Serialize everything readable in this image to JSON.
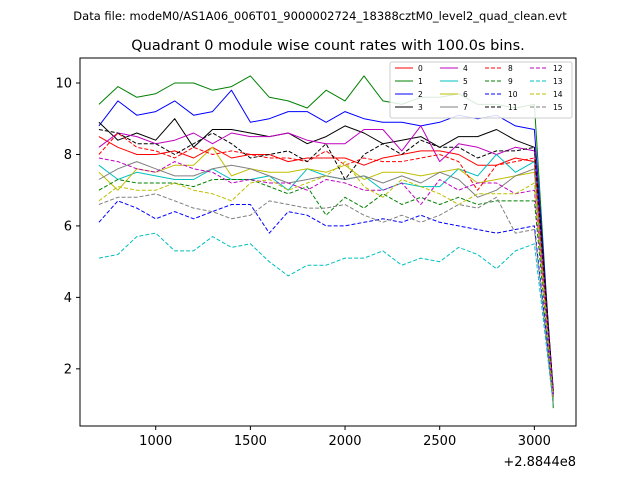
{
  "header": {
    "datafile": "Data file: modeM0/AS1A06_006T01_9000002724_18388cztM0_level2_quad_clean.evt"
  },
  "chart_data": {
    "type": "line",
    "title": "Quadrant 0 module wise count rates with 100.0s bins.",
    "xlabel": "",
    "ylabel": "",
    "x_offset_label": "+2.8844e8",
    "xlim": [
      600,
      3220
    ],
    "ylim": [
      0.4,
      10.7
    ],
    "xticks": [
      1000,
      1500,
      2000,
      2500,
      3000
    ],
    "yticks": [
      2,
      4,
      6,
      8,
      10
    ],
    "legend_position": "top-right",
    "x": [
      700,
      800,
      900,
      1000,
      1100,
      1200,
      1300,
      1400,
      1500,
      1600,
      1700,
      1800,
      1900,
      2000,
      2100,
      2200,
      2300,
      2400,
      2500,
      2600,
      2700,
      2800,
      2900,
      3000,
      3100
    ],
    "series": [
      {
        "name": "0",
        "color": "#ff0000",
        "dash": "solid",
        "values": [
          8.5,
          8.2,
          8.0,
          8.0,
          8.1,
          7.9,
          8.2,
          7.9,
          8.0,
          8.0,
          7.8,
          7.9,
          7.9,
          7.9,
          7.7,
          7.9,
          8.0,
          8.1,
          8.1,
          8.0,
          7.7,
          7.7,
          7.9,
          7.8,
          1.2
        ]
      },
      {
        "name": "1",
        "color": "#008000",
        "dash": "solid",
        "values": [
          9.4,
          9.9,
          9.6,
          9.7,
          10.0,
          10.0,
          9.8,
          9.9,
          10.2,
          9.6,
          9.5,
          9.3,
          9.8,
          9.5,
          10.2,
          9.5,
          9.4,
          9.6,
          9.6,
          9.7,
          9.4,
          9.4,
          9.3,
          9.4,
          0.9
        ]
      },
      {
        "name": "2",
        "color": "#0000ff",
        "dash": "solid",
        "values": [
          8.8,
          9.5,
          9.1,
          9.2,
          9.5,
          9.1,
          9.2,
          9.8,
          8.9,
          9.0,
          9.2,
          9.2,
          8.9,
          9.2,
          9.0,
          8.9,
          8.9,
          8.8,
          8.9,
          9.1,
          9.0,
          9.1,
          8.8,
          8.7,
          1.3
        ]
      },
      {
        "name": "3",
        "color": "#000000",
        "dash": "solid",
        "values": [
          8.9,
          8.4,
          8.6,
          8.4,
          9.0,
          8.2,
          8.7,
          8.7,
          8.6,
          8.5,
          8.6,
          8.3,
          8.5,
          8.8,
          8.6,
          8.3,
          8.4,
          8.5,
          8.2,
          8.5,
          8.5,
          8.7,
          8.4,
          8.2,
          1.4
        ]
      },
      {
        "name": "4",
        "color": "#c000c0",
        "dash": "solid",
        "values": [
          8.2,
          8.6,
          8.5,
          8.3,
          8.4,
          8.6,
          8.3,
          8.6,
          8.5,
          8.5,
          8.6,
          8.4,
          8.3,
          8.3,
          8.7,
          8.7,
          8.1,
          8.8,
          7.8,
          8.3,
          8.2,
          8.0,
          8.2,
          8.1,
          1.3
        ]
      },
      {
        "name": "5",
        "color": "#00bfbf",
        "dash": "solid",
        "values": [
          7.7,
          7.3,
          7.5,
          7.4,
          7.3,
          7.3,
          7.6,
          7.3,
          7.3,
          7.4,
          7.0,
          7.6,
          7.4,
          7.3,
          7.4,
          7.0,
          7.2,
          7.1,
          7.1,
          7.6,
          7.4,
          8.0,
          7.5,
          7.8,
          1.1
        ]
      },
      {
        "name": "6",
        "color": "#bfbf00",
        "dash": "solid",
        "values": [
          7.5,
          7.0,
          7.6,
          7.5,
          7.7,
          7.7,
          8.2,
          7.4,
          7.6,
          7.5,
          7.5,
          7.6,
          7.5,
          7.7,
          7.3,
          7.5,
          7.5,
          7.4,
          7.5,
          7.6,
          7.2,
          7.3,
          7.4,
          7.5,
          1.0
        ]
      },
      {
        "name": "7",
        "color": "#808080",
        "dash": "solid",
        "values": [
          7.3,
          7.6,
          7.8,
          7.6,
          7.4,
          7.4,
          7.6,
          7.7,
          7.6,
          7.4,
          7.2,
          7.3,
          7.4,
          7.3,
          7.4,
          7.2,
          7.4,
          7.2,
          7.5,
          7.3,
          6.8,
          7.0,
          7.4,
          7.6,
          1.2
        ]
      },
      {
        "name": "8",
        "color": "#ff0000",
        "dash": "dashed",
        "values": [
          8.0,
          8.6,
          8.2,
          8.1,
          7.9,
          8.2,
          8.0,
          8.1,
          8.0,
          7.9,
          7.9,
          7.8,
          8.1,
          7.7,
          7.9,
          7.8,
          7.8,
          7.9,
          8.0,
          7.8,
          7.0,
          7.7,
          7.8,
          7.9,
          1.2
        ]
      },
      {
        "name": "9",
        "color": "#008000",
        "dash": "dashed",
        "values": [
          7.0,
          7.3,
          7.2,
          7.2,
          7.2,
          7.1,
          7.3,
          7.3,
          7.3,
          7.1,
          6.9,
          7.1,
          6.3,
          6.8,
          6.5,
          6.9,
          6.6,
          6.8,
          6.6,
          6.8,
          6.6,
          6.7,
          6.7,
          6.7,
          1.1
        ]
      },
      {
        "name": "10",
        "color": "#0000ff",
        "dash": "dashed",
        "values": [
          6.1,
          6.7,
          6.5,
          6.2,
          6.4,
          6.2,
          6.4,
          6.6,
          6.6,
          5.8,
          6.4,
          6.3,
          6.0,
          6.0,
          6.1,
          6.2,
          6.1,
          6.3,
          6.1,
          6.0,
          5.9,
          5.8,
          5.9,
          6.0,
          1.2
        ]
      },
      {
        "name": "11",
        "color": "#000000",
        "dash": "dashed",
        "values": [
          8.7,
          8.6,
          8.3,
          8.3,
          8.0,
          8.3,
          8.6,
          8.3,
          7.9,
          8.0,
          8.1,
          7.8,
          8.3,
          7.3,
          8.0,
          8.3,
          8.0,
          8.4,
          8.2,
          8.2,
          7.9,
          8.1,
          8.1,
          8.2,
          1.3
        ]
      },
      {
        "name": "12",
        "color": "#c000c0",
        "dash": "dashed",
        "values": [
          7.9,
          7.8,
          7.6,
          7.5,
          7.8,
          7.6,
          7.5,
          7.2,
          7.3,
          7.2,
          7.2,
          7.0,
          7.3,
          7.2,
          7.0,
          7.0,
          7.2,
          6.6,
          7.3,
          7.0,
          7.2,
          7.2,
          6.9,
          7.0,
          1.3
        ]
      },
      {
        "name": "13",
        "color": "#00bfbf",
        "dash": "dashed",
        "values": [
          5.1,
          5.2,
          5.7,
          5.8,
          5.3,
          5.3,
          5.7,
          5.4,
          5.5,
          5.0,
          4.6,
          4.9,
          4.9,
          5.1,
          5.1,
          5.3,
          4.9,
          5.1,
          5.0,
          5.4,
          5.2,
          4.8,
          5.3,
          5.5,
          1.0
        ]
      },
      {
        "name": "14",
        "color": "#bfbf00",
        "dash": "dashed",
        "values": [
          6.7,
          7.1,
          7.0,
          7.0,
          7.2,
          7.0,
          6.9,
          6.7,
          7.2,
          7.3,
          7.0,
          7.2,
          7.4,
          7.8,
          7.1,
          6.8,
          7.3,
          7.1,
          6.9,
          6.6,
          6.9,
          6.9,
          6.9,
          7.2,
          1.1
        ]
      },
      {
        "name": "15",
        "color": "#808080",
        "dash": "dashed",
        "values": [
          6.6,
          6.8,
          6.8,
          6.9,
          6.7,
          6.5,
          6.4,
          6.2,
          6.3,
          6.7,
          6.6,
          6.5,
          6.5,
          6.6,
          6.3,
          6.1,
          6.3,
          6.1,
          6.3,
          6.6,
          6.5,
          6.8,
          5.8,
          5.9,
          1.0
        ]
      }
    ]
  }
}
